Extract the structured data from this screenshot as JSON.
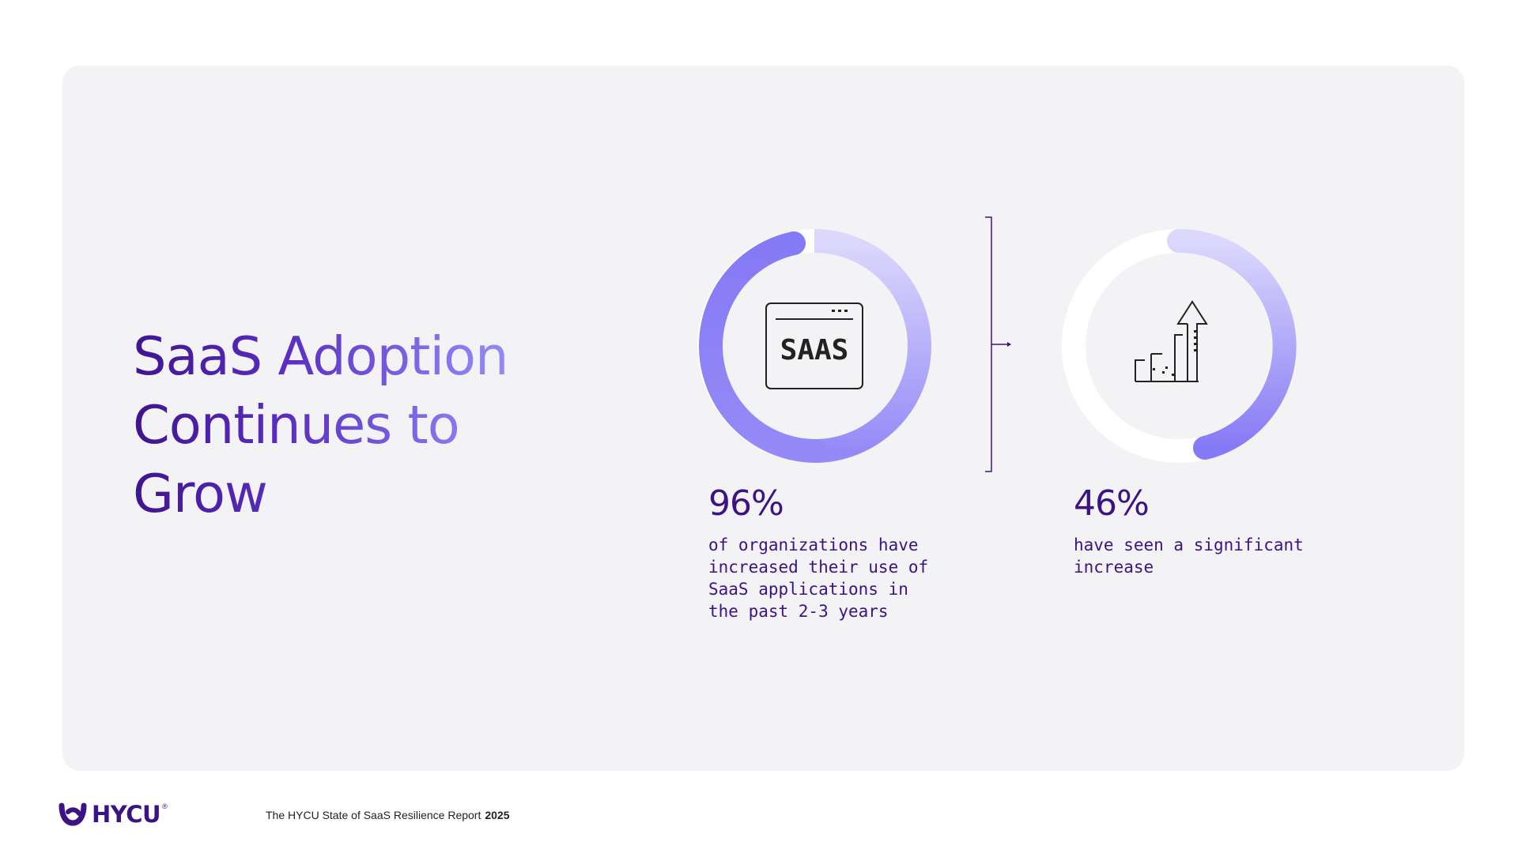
{
  "headline": {
    "line1": "SaaS Adoption",
    "line2": "Continues to",
    "line3": "Grow"
  },
  "stats": [
    {
      "value": "96%",
      "fraction": 0.96,
      "description": [
        "of organizations have",
        "increased their use of",
        "SaaS applications in",
        "the past 2-3 years"
      ],
      "icon": "saas-window-icon",
      "icon_label": "SAAS"
    },
    {
      "value": "46%",
      "fraction": 0.46,
      "description": [
        "have seen a significant",
        "increase"
      ],
      "icon": "growth-bars-arrow-icon"
    }
  ],
  "footer": {
    "logo_text": "HYCU",
    "report_title": "The HYCU State of SaaS Resilience Report",
    "year": "2025"
  },
  "colors": {
    "primary": "#3b1384",
    "ring_light": "#d8d3fb",
    "ring_dark": "#8a7ef6",
    "ring_track": "#ffffff",
    "panel": "#f3f3f5"
  }
}
